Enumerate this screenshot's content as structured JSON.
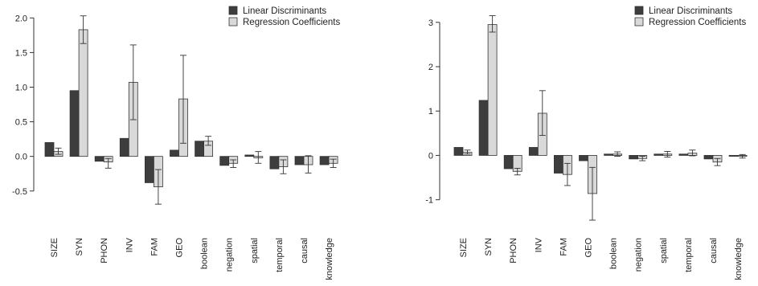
{
  "chart_data": [
    {
      "type": "bar",
      "categories": [
        "SIZE",
        "SYN",
        "PHON",
        "INV",
        "FAM",
        "GEO",
        "boolean",
        "negation",
        "spatial",
        "temporal",
        "causal",
        "knowledge"
      ],
      "series": [
        {
          "name": "Linear Discriminants",
          "color": "#3d3d3d",
          "values": [
            0.2,
            0.95,
            -0.07,
            0.26,
            -0.38,
            0.09,
            0.22,
            -0.13,
            0.02,
            -0.18,
            -0.12,
            -0.12
          ]
        },
        {
          "name": "Regression Coefficients",
          "color": "#d9d9d9",
          "values": [
            0.07,
            1.83,
            -0.08,
            1.07,
            -0.44,
            0.83,
            0.22,
            -0.1,
            -0.02,
            -0.15,
            -0.12,
            -0.1
          ],
          "error_low": [
            0.03,
            1.63,
            -0.17,
            0.53,
            -0.69,
            0.19,
            0.16,
            -0.16,
            -0.1,
            -0.25,
            -0.24,
            -0.16
          ],
          "error_high": [
            0.12,
            2.03,
            -0.03,
            1.61,
            -0.19,
            1.46,
            0.29,
            -0.05,
            0.07,
            -0.05,
            0.01,
            -0.04
          ]
        }
      ],
      "ylim": [
        -0.7,
        2.05
      ],
      "yticks": [
        -0.5,
        0.0,
        0.5,
        1.0,
        1.5,
        2.0
      ],
      "ytick_labels": [
        "-0.5",
        "0.0",
        "0.5",
        "1.0",
        "1.5",
        "2.0"
      ],
      "title": "",
      "xlabel": "",
      "ylabel": "",
      "legend_position": "top-right",
      "grid": false
    },
    {
      "type": "bar",
      "categories": [
        "SIZE",
        "SYN",
        "PHON",
        "INV",
        "FAM",
        "GEO",
        "boolean",
        "negation",
        "spatial",
        "temporal",
        "causal",
        "knowledge"
      ],
      "series": [
        {
          "name": "Linear Discriminants",
          "color": "#3d3d3d",
          "values": [
            0.18,
            1.24,
            -0.3,
            0.18,
            -0.4,
            -0.12,
            0.03,
            -0.08,
            0.03,
            0.03,
            -0.08,
            -0.02
          ]
        },
        {
          "name": "Regression Coefficients",
          "color": "#d9d9d9",
          "values": [
            0.07,
            2.95,
            -0.36,
            0.95,
            -0.43,
            -0.86,
            0.03,
            -0.07,
            0.03,
            0.05,
            -0.15,
            -0.02
          ],
          "error_low": [
            0.03,
            2.78,
            -0.44,
            0.45,
            -0.68,
            -1.46,
            -0.02,
            -0.12,
            -0.04,
            -0.01,
            -0.23,
            -0.06
          ],
          "error_high": [
            0.12,
            3.15,
            -0.29,
            1.46,
            -0.18,
            -0.27,
            0.08,
            -0.02,
            0.09,
            0.12,
            -0.07,
            0.02
          ]
        }
      ],
      "ylim": [
        -1.55,
        3.25
      ],
      "yticks": [
        -1,
        0,
        1,
        2,
        3
      ],
      "ytick_labels": [
        "-1",
        "0",
        "1",
        "2",
        "3"
      ],
      "title": "",
      "xlabel": "",
      "ylabel": "",
      "legend_position": "top-right",
      "grid": false
    }
  ]
}
